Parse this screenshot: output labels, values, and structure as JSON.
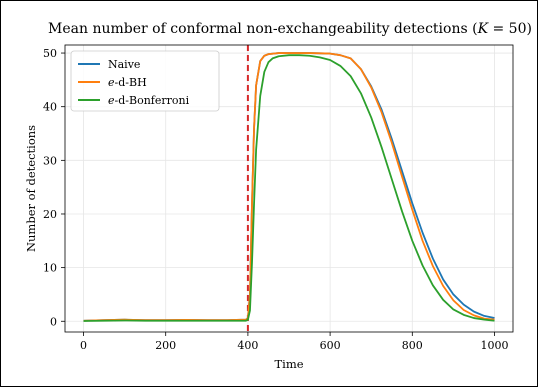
{
  "chart_data": {
    "type": "line",
    "title": "Mean number of conformal non-exchangeability detections (K = 50)",
    "title_parts": {
      "text": "Mean number of conformal non-exchangeability detections (",
      "var": "K",
      "eq": " = 50)"
    },
    "xlabel": "Time",
    "ylabel": "Number of detections",
    "xlim": [
      -45,
      1045
    ],
    "ylim": [
      -2,
      51.5
    ],
    "xticks": [
      0,
      200,
      400,
      600,
      800,
      1000
    ],
    "yticks": [
      0,
      10,
      20,
      30,
      40,
      50
    ],
    "grid": true,
    "legend_position": "top-left",
    "vline": {
      "x": 400,
      "color": "#d62728",
      "style": "dashed"
    },
    "series": [
      {
        "name": "Naive",
        "legend_parts": {
          "italic": "",
          "rest": "Naive"
        },
        "color": "#1f77b4",
        "x": [
          0,
          50,
          100,
          150,
          200,
          250,
          300,
          350,
          395,
          400,
          405,
          410,
          415,
          420,
          430,
          440,
          450,
          475,
          500,
          550,
          600,
          625,
          650,
          675,
          700,
          725,
          750,
          775,
          800,
          825,
          850,
          875,
          900,
          925,
          950,
          975,
          1000
        ],
        "values": [
          0.1,
          0.2,
          0.3,
          0.2,
          0.2,
          0.25,
          0.2,
          0.2,
          0.3,
          0.6,
          5.0,
          22.0,
          36.0,
          44.0,
          48.5,
          49.5,
          49.8,
          50.0,
          50.0,
          50.0,
          49.9,
          49.6,
          49.0,
          47.0,
          43.8,
          39.5,
          34.0,
          28.0,
          22.0,
          16.5,
          11.7,
          7.8,
          5.0,
          3.1,
          1.8,
          1.0,
          0.6
        ]
      },
      {
        "name": "e-d-BH",
        "legend_parts": {
          "italic": "e",
          "rest": "-d-BH"
        },
        "color": "#ff7f0e",
        "x": [
          0,
          50,
          100,
          150,
          200,
          250,
          300,
          350,
          395,
          400,
          405,
          410,
          415,
          420,
          430,
          440,
          450,
          475,
          500,
          550,
          600,
          625,
          650,
          675,
          700,
          725,
          750,
          775,
          800,
          825,
          850,
          875,
          900,
          925,
          950,
          975,
          1000
        ],
        "values": [
          0.1,
          0.2,
          0.3,
          0.2,
          0.2,
          0.25,
          0.2,
          0.2,
          0.3,
          0.6,
          5.0,
          22.0,
          36.0,
          44.0,
          48.5,
          49.5,
          49.8,
          50.0,
          50.0,
          50.0,
          49.9,
          49.6,
          49.0,
          47.0,
          43.6,
          39.0,
          33.3,
          27.0,
          20.8,
          15.0,
          10.3,
          6.6,
          3.9,
          2.1,
          1.1,
          0.5,
          0.3
        ]
      },
      {
        "name": "e-d-Bonferroni",
        "legend_parts": {
          "italic": "e",
          "rest": "-d-Bonferroni"
        },
        "color": "#2ca02c",
        "x": [
          0,
          50,
          100,
          150,
          200,
          250,
          300,
          350,
          395,
          400,
          405,
          410,
          415,
          420,
          430,
          440,
          450,
          460,
          475,
          500,
          525,
          550,
          575,
          600,
          625,
          650,
          675,
          700,
          725,
          750,
          775,
          800,
          825,
          850,
          875,
          900,
          925,
          950,
          975,
          1000
        ],
        "values": [
          0.05,
          0.1,
          0.15,
          0.1,
          0.1,
          0.1,
          0.1,
          0.1,
          0.1,
          0.3,
          2.0,
          11.0,
          22.0,
          32.0,
          42.0,
          46.5,
          48.3,
          49.0,
          49.4,
          49.6,
          49.6,
          49.5,
          49.2,
          48.7,
          47.6,
          45.7,
          42.5,
          38.0,
          32.5,
          26.5,
          20.5,
          15.0,
          10.4,
          6.7,
          4.0,
          2.2,
          1.2,
          0.6,
          0.3,
          0.1
        ]
      }
    ]
  }
}
